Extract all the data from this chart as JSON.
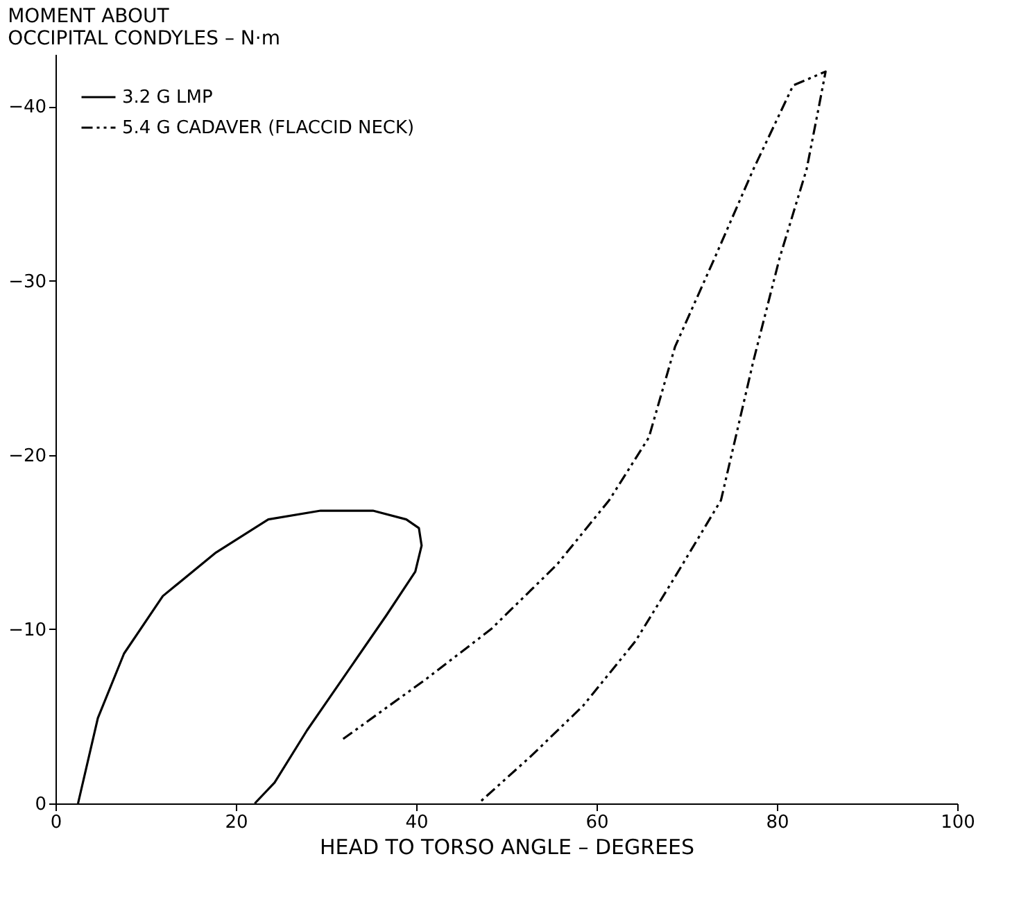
{
  "chart_data": {
    "type": "line",
    "xlabel": "HEAD TO TORSO ANGLE – DEGREES",
    "ylabel": "MOMENT ABOUT\nOCCIPITAL CONDYLES – N·m",
    "xlim": [
      0,
      100
    ],
    "xticks": [
      0,
      20,
      40,
      60,
      80,
      100
    ],
    "ylim": [
      0,
      -43
    ],
    "yticks": [
      0,
      -10,
      -20,
      -30,
      -40
    ],
    "grid": false,
    "legend": "top left",
    "marker": "none",
    "series": [
      {
        "name": "3.2 G LMP",
        "color": "#000000",
        "line_style": "solid",
        "x": [
          2.5,
          4.7,
          7.6,
          11.9,
          17.8,
          23.6,
          29.4,
          35.2,
          38.9,
          40.3,
          40.6,
          39.9,
          36.7,
          32.3,
          27.9,
          24.3,
          22.1
        ],
        "values": [
          0,
          -4.9,
          -8.6,
          -11.9,
          -14.4,
          -16.3,
          -16.8,
          -16.8,
          -16.3,
          -15.8,
          -14.8,
          -13.3,
          -10.8,
          -7.5,
          -4.2,
          -1.2,
          0
        ]
      },
      {
        "name": "5.4 G CADAVER (FLACCID NECK)",
        "color": "#000000",
        "line_style": "dashed",
        "x": [
          31.9,
          41.0,
          48.3,
          55.6,
          61.4,
          65.8,
          68.7,
          73.1,
          77.4,
          81.8,
          85.4,
          84.7,
          83.3,
          80.3,
          77.4,
          73.8,
          68.7,
          64.3,
          58.5,
          52.7,
          46.9
        ],
        "values": [
          -3.7,
          -7.1,
          -10.0,
          -13.7,
          -17.4,
          -21.0,
          -26.2,
          -31.3,
          -36.4,
          -41.2,
          -42.0,
          -40.1,
          -36.4,
          -31.3,
          -25.4,
          -17.4,
          -13.0,
          -9.3,
          -5.6,
          -2.7,
          0
        ]
      }
    ]
  }
}
